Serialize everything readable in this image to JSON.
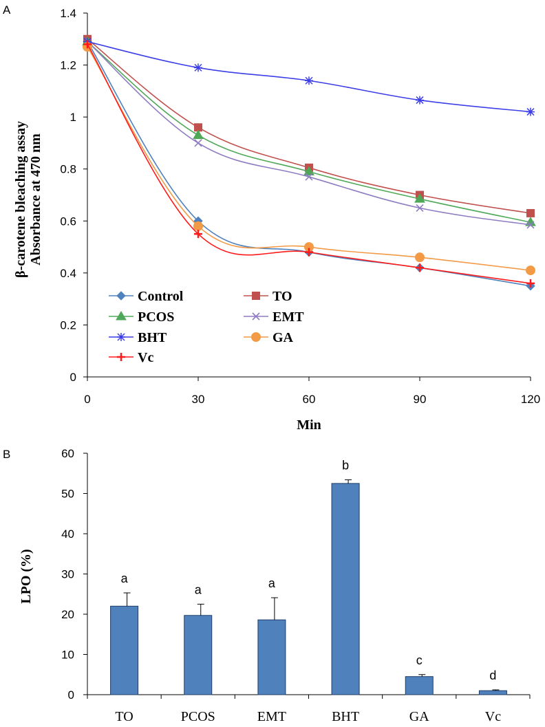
{
  "chart_data": [
    {
      "panel_label": "A",
      "type": "line",
      "xlabel": "Min",
      "ylabel_line1": "β-carotene bleaching assay",
      "ylabel_line2": "Absorbance at 470 nm",
      "x": [
        0,
        30,
        60,
        90,
        120
      ],
      "xlim": [
        0,
        120
      ],
      "ylim": [
        0,
        1.4
      ],
      "xticks": [
        "0",
        "30",
        "60",
        "90",
        "120"
      ],
      "yticks": [
        "0",
        "0.2",
        "0.4",
        "0.6",
        "0.8",
        "1",
        "1.2",
        "1.4"
      ],
      "grid": false,
      "legend_position": "bottom-left",
      "series": [
        {
          "name": "Control",
          "values": [
            1.29,
            0.6,
            0.48,
            0.42,
            0.35
          ],
          "color": "#4f81bd",
          "marker": "diamond"
        },
        {
          "name": "TO",
          "values": [
            1.3,
            0.96,
            0.805,
            0.7,
            0.63
          ],
          "color": "#c0504d",
          "marker": "square"
        },
        {
          "name": "PCOS",
          "values": [
            1.29,
            0.93,
            0.79,
            0.685,
            0.595
          ],
          "color": "#4ea858",
          "marker": "triangle"
        },
        {
          "name": "EMT",
          "values": [
            1.29,
            0.9,
            0.77,
            0.65,
            0.585
          ],
          "color": "#8e7cc3",
          "marker": "x"
        },
        {
          "name": "BHT",
          "values": [
            1.29,
            1.19,
            1.14,
            1.065,
            1.02
          ],
          "color": "#3b3de8",
          "marker": "asterisk"
        },
        {
          "name": "GA",
          "values": [
            1.27,
            0.58,
            0.5,
            0.46,
            0.41
          ],
          "color": "#f29a45",
          "marker": "circle"
        },
        {
          "name": "Vc",
          "values": [
            1.28,
            0.55,
            0.48,
            0.42,
            0.36
          ],
          "color": "#ff1a1a",
          "marker": "plus"
        }
      ]
    },
    {
      "panel_label": "B",
      "type": "bar",
      "ylabel": "LPO (%)",
      "ylim": [
        0,
        60
      ],
      "yticks": [
        "0",
        "10",
        "20",
        "30",
        "40",
        "50",
        "60"
      ],
      "grid": false,
      "bar_color": "#4f81bd",
      "categories": [
        "TO",
        "PCOS",
        "EMT",
        "BHT",
        "GA",
        "Vc"
      ],
      "values": [
        22.0,
        19.7,
        18.6,
        52.5,
        4.5,
        1.0
      ],
      "errors": [
        3.3,
        2.8,
        5.5,
        0.9,
        0.5,
        0.2
      ],
      "significance": [
        "a",
        "a",
        "a",
        "b",
        "c",
        "d"
      ]
    }
  ]
}
